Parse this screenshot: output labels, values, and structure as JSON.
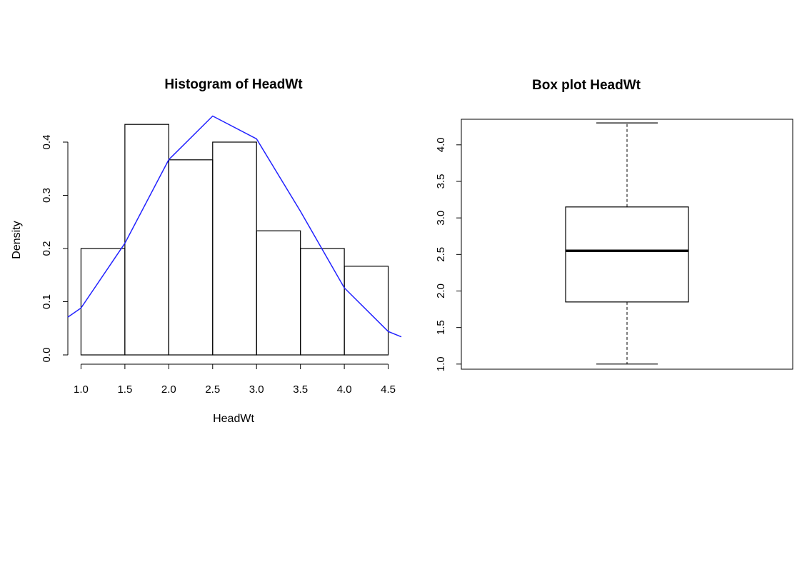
{
  "chart_data": [
    {
      "type": "bar",
      "title": "Histogram of HeadWt",
      "xlabel": "HeadWt",
      "ylabel": "Density",
      "xlim": [
        0.85,
        4.65
      ],
      "ylim": [
        0,
        0.4
      ],
      "bins": [
        {
          "start": 1.0,
          "end": 1.5,
          "density": 0.2
        },
        {
          "start": 1.5,
          "end": 2.0,
          "density": 0.4333
        },
        {
          "start": 2.0,
          "end": 2.5,
          "density": 0.3667
        },
        {
          "start": 2.5,
          "end": 3.0,
          "density": 0.4
        },
        {
          "start": 3.0,
          "end": 3.5,
          "density": 0.2333
        },
        {
          "start": 3.5,
          "end": 4.0,
          "density": 0.2
        },
        {
          "start": 4.0,
          "end": 4.5,
          "density": 0.1667
        }
      ],
      "x_ticks": [
        "1.0",
        "1.5",
        "2.0",
        "2.5",
        "3.0",
        "3.5",
        "4.0",
        "4.5"
      ],
      "y_ticks": [
        "0.0",
        "0.1",
        "0.2",
        "0.3",
        "0.4"
      ],
      "density_curve": {
        "color": "#2222ff",
        "points": [
          [
            0.85,
            0.071
          ],
          [
            1.0,
            0.088
          ],
          [
            1.5,
            0.21
          ],
          [
            2.0,
            0.367
          ],
          [
            2.5,
            0.449
          ],
          [
            3.0,
            0.406
          ],
          [
            3.5,
            0.27
          ],
          [
            4.0,
            0.126
          ],
          [
            4.5,
            0.044
          ],
          [
            4.65,
            0.034
          ]
        ]
      },
      "grid": false
    },
    {
      "type": "box",
      "title": "Box plot HeadWt",
      "ylim": [
        0.93,
        4.35
      ],
      "y_ticks": [
        "1.0",
        "1.5",
        "2.0",
        "2.5",
        "3.0",
        "3.5",
        "4.0"
      ],
      "stats": {
        "min": 1.0,
        "q1": 1.85,
        "median": 2.55,
        "q3": 3.15,
        "max": 4.3
      },
      "grid": false
    }
  ]
}
